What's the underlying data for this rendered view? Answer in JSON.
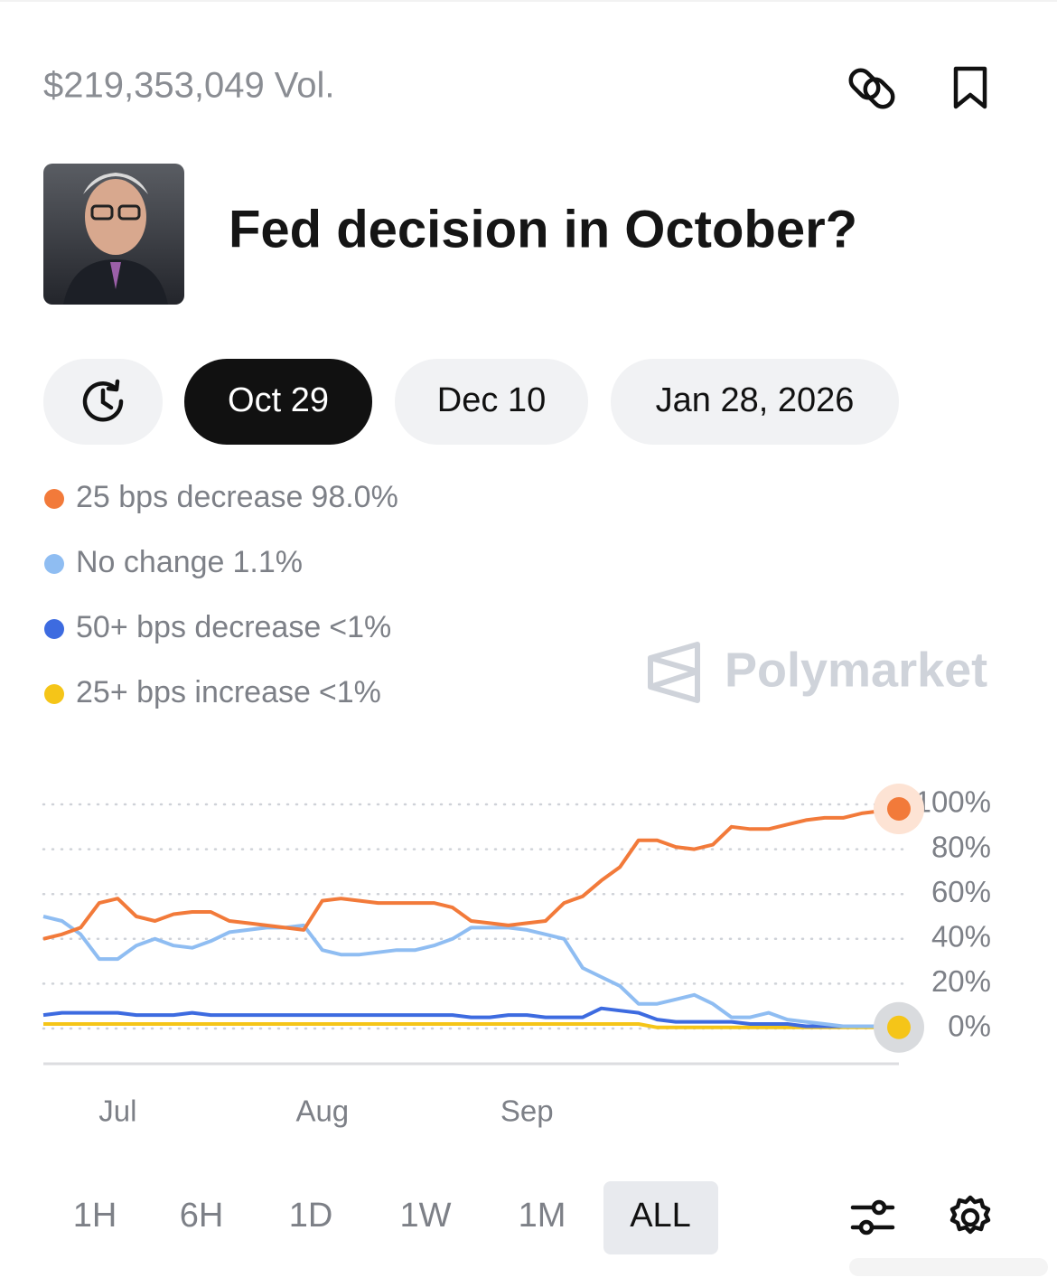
{
  "header": {
    "volume": "$219,353,049 Vol."
  },
  "title": "Fed decision in October?",
  "date_tabs": [
    "Oct 29",
    "Dec 10",
    "Jan 28, 2026"
  ],
  "watermark": "Polymarket",
  "range_buttons": [
    "1H",
    "6H",
    "1D",
    "1W",
    "1M",
    "ALL"
  ],
  "chart_data": {
    "type": "line",
    "categories": [
      null,
      null,
      null,
      null,
      "Jul",
      null,
      null,
      null,
      null,
      null,
      null,
      null,
      null,
      null,
      null,
      "Aug",
      null,
      null,
      null,
      null,
      null,
      null,
      null,
      null,
      null,
      null,
      "Sep",
      null,
      null,
      null,
      null,
      null,
      null,
      null,
      null,
      null,
      null,
      null,
      null,
      null,
      null,
      null,
      null,
      null,
      null,
      null,
      null
    ],
    "series": [
      {
        "name": "25 bps decrease",
        "current": "98.0%",
        "color": "#f27a3a",
        "values": [
          40,
          42,
          45,
          56,
          58,
          50,
          48,
          51,
          52,
          52,
          48,
          47,
          46,
          45,
          44,
          57,
          58,
          57,
          56,
          56,
          56,
          56,
          54,
          48,
          47,
          46,
          47,
          48,
          56,
          59,
          66,
          72,
          84,
          84,
          81,
          80,
          82,
          90,
          89,
          89,
          91,
          93,
          94,
          94,
          96,
          97,
          98
        ]
      },
      {
        "name": "No change",
        "current": "1.1%",
        "color": "#8fbdf2",
        "values": [
          50,
          48,
          42,
          31,
          31,
          37,
          40,
          37,
          36,
          39,
          43,
          44,
          45,
          45,
          46,
          35,
          33,
          33,
          34,
          35,
          35,
          37,
          40,
          45,
          45,
          45,
          44,
          42,
          40,
          27,
          23,
          19,
          11,
          11,
          13,
          15,
          11,
          5,
          5,
          7,
          4,
          3,
          2,
          1,
          1,
          1,
          1.1
        ]
      },
      {
        "name": "50+ bps decrease",
        "current": "<1%",
        "color": "#3d6be0",
        "values": [
          6,
          7,
          7,
          7,
          7,
          6,
          6,
          6,
          7,
          6,
          6,
          6,
          6,
          6,
          6,
          6,
          6,
          6,
          6,
          6,
          6,
          6,
          6,
          5,
          5,
          6,
          6,
          5,
          5,
          5,
          9,
          8,
          7,
          4,
          3,
          3,
          3,
          3,
          2,
          2,
          2,
          1,
          1,
          1,
          1,
          1,
          1
        ]
      },
      {
        "name": "25+ bps increase",
        "current": "<1%",
        "color": "#f5c518",
        "values": [
          2,
          2,
          2,
          2,
          2,
          2,
          2,
          2,
          2,
          2,
          2,
          2,
          2,
          2,
          2,
          2,
          2,
          2,
          2,
          2,
          2,
          2,
          2,
          2,
          2,
          2,
          2,
          2,
          2,
          2,
          2,
          2,
          2,
          0.5,
          0.5,
          0.5,
          0.5,
          0.5,
          0.5,
          0.5,
          0.5,
          0.5,
          0.5,
          0.5,
          0.5,
          0.5,
          0.5
        ]
      }
    ],
    "ylim": [
      0,
      100
    ],
    "yticks": [
      {
        "value": 0,
        "label": "0%"
      },
      {
        "value": 20,
        "label": "20%"
      },
      {
        "value": 40,
        "label": "40%"
      },
      {
        "value": 60,
        "label": "60%"
      },
      {
        "value": 80,
        "label": "80%"
      },
      {
        "value": 100,
        "label": "100%"
      }
    ],
    "grid": true
  }
}
